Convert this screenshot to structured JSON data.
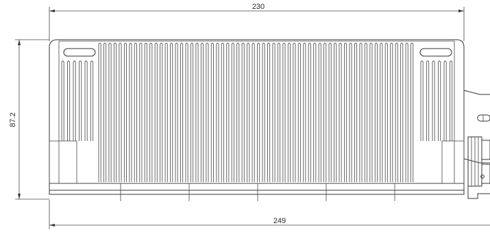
{
  "drawing": {
    "dimensions": {
      "top_width": "230",
      "bottom_width": "249",
      "height": "87.2"
    },
    "fin_count_main": 62,
    "fin_count_side": 6,
    "colors": {
      "line": "#333333",
      "background": "#ffffff"
    }
  }
}
